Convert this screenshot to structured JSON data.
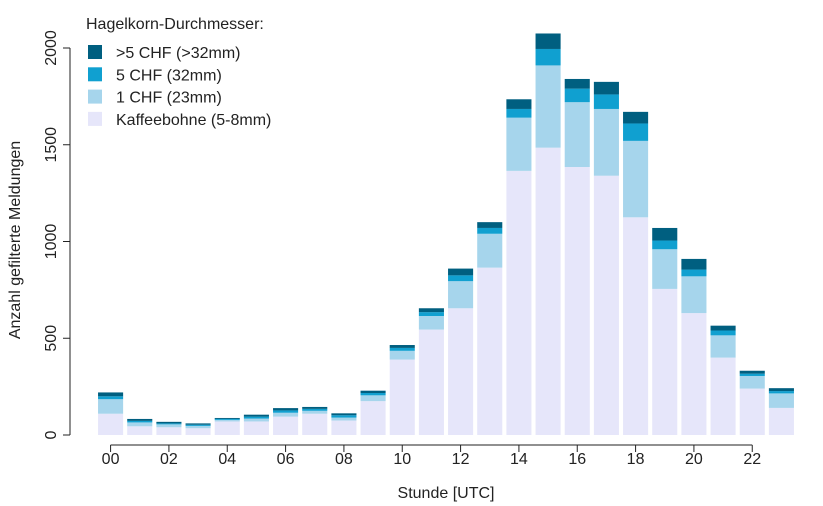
{
  "chart_data": {
    "type": "bar",
    "stacked": true,
    "xlabel": "Stunde [UTC]",
    "ylabel": "Anzahl gefilterte Meldungen",
    "ylim": [
      0,
      2100
    ],
    "yticks": [
      0,
      500,
      1000,
      1500,
      2000
    ],
    "categories": [
      "00",
      "01",
      "02",
      "03",
      "04",
      "05",
      "06",
      "07",
      "08",
      "09",
      "10",
      "11",
      "12",
      "13",
      "14",
      "15",
      "16",
      "17",
      "18",
      "19",
      "20",
      "21",
      "22",
      "23"
    ],
    "xtick_labels": [
      "00",
      "02",
      "04",
      "06",
      "08",
      "10",
      "12",
      "14",
      "16",
      "18",
      "20",
      "22"
    ],
    "legend": {
      "title": "Hagelkorn-Durchmesser:",
      "position": "top-left"
    },
    "series": [
      {
        "name": "Kaffeebohne (5-8mm)",
        "color": "#e6e6fa",
        "values": [
          110,
          45,
          40,
          35,
          70,
          70,
          95,
          110,
          75,
          175,
          390,
          545,
          655,
          865,
          1365,
          1485,
          1385,
          1340,
          1125,
          755,
          630,
          400,
          240,
          140
        ]
      },
      {
        "name": "1 CHF (23mm)",
        "color": "#a6d5ec",
        "values": [
          75,
          20,
          15,
          12,
          8,
          15,
          20,
          15,
          15,
          30,
          45,
          70,
          140,
          175,
          275,
          425,
          335,
          345,
          395,
          205,
          190,
          115,
          65,
          75
        ]
      },
      {
        "name": "5 CHF (32mm)",
        "color": "#10a0d0",
        "values": [
          15,
          8,
          5,
          6,
          5,
          10,
          12,
          10,
          12,
          12,
          15,
          20,
          30,
          30,
          45,
          85,
          70,
          75,
          90,
          45,
          35,
          25,
          12,
          12
        ]
      },
      {
        "name": ">5 CHF (>32mm)",
        "color": "#005f80",
        "values": [
          20,
          10,
          8,
          7,
          5,
          10,
          12,
          10,
          10,
          12,
          15,
          20,
          35,
          30,
          50,
          80,
          50,
          65,
          60,
          65,
          55,
          25,
          15,
          15
        ]
      }
    ]
  }
}
